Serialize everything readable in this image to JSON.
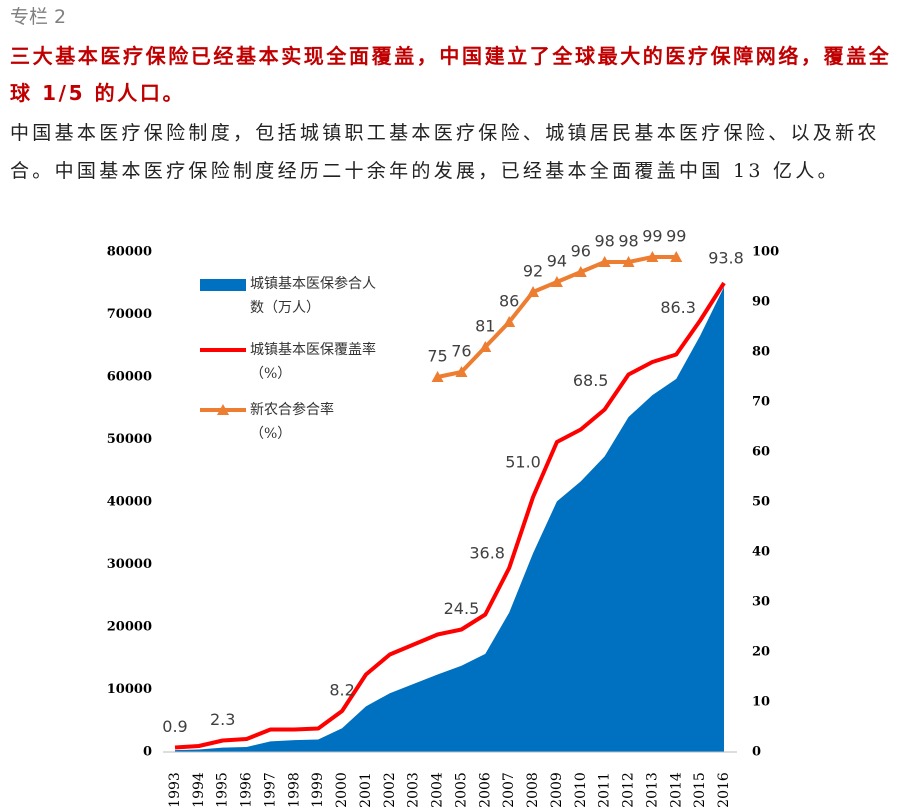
{
  "header": {
    "column": "专栏 2",
    "title": "三大基本医疗保险已经基本实现全面覆盖，中国建立了全球最大的医疗保障网络，覆盖全球 1/5 的人口。",
    "body": "中国基本医疗保险制度，包括城镇职工基本医疗保险、城镇居民基本医疗保险、以及新农合。中国基本医疗保险制度经历二十余年的发展，已经基本全面覆盖中国 13 亿人。"
  },
  "chart_data": {
    "type": "combo",
    "categories": [
      "1993",
      "1994",
      "1995",
      "1996",
      "1997",
      "1998",
      "1999",
      "2000",
      "2001",
      "2002",
      "2003",
      "2004",
      "2005",
      "2006",
      "2007",
      "2008",
      "2009",
      "2010",
      "2011",
      "2012",
      "2013",
      "2014",
      "2015",
      "2016"
    ],
    "series": [
      {
        "name": "城镇基本医保参合人数（万人）",
        "type": "area",
        "color": "#0070c0",
        "axis": "y",
        "values": [
          300,
          400,
          700,
          800,
          1700,
          1900,
          2000,
          3800,
          7300,
          9400,
          10900,
          12400,
          13800,
          15700,
          22300,
          31800,
          40100,
          43300,
          47300,
          53600,
          57100,
          59700,
          66600,
          74400
        ]
      },
      {
        "name": "城镇基本医保覆盖率（%）",
        "type": "line",
        "color": "#ff0000",
        "axis": "y2",
        "values": [
          0.9,
          1.2,
          2.3,
          2.6,
          4.5,
          4.5,
          4.7,
          8.2,
          15.5,
          19.5,
          21.5,
          23.5,
          24.5,
          27.5,
          36.8,
          51.0,
          62,
          64.5,
          68.5,
          75.5,
          78,
          79.5,
          86.3,
          93.8
        ],
        "value_labels": [
          "0.9",
          null,
          "2.3",
          null,
          null,
          null,
          null,
          "8.2",
          null,
          null,
          null,
          null,
          "24.5",
          null,
          "36.8",
          "51.0",
          null,
          null,
          "68.5",
          null,
          null,
          null,
          "86.3",
          "93.8"
        ]
      },
      {
        "name": "新农合参合率（%）",
        "type": "line",
        "marker": "triangle",
        "color": "#ed7d31",
        "axis": "y2",
        "values": [
          null,
          null,
          null,
          null,
          null,
          null,
          null,
          null,
          null,
          null,
          null,
          75,
          76,
          81,
          86,
          92,
          94,
          96,
          98,
          98,
          99,
          99,
          null,
          null
        ],
        "value_labels": [
          null,
          null,
          null,
          null,
          null,
          null,
          null,
          null,
          null,
          null,
          null,
          "75",
          "76",
          "81",
          "86",
          "92",
          "94",
          "96",
          "98",
          "98",
          "99",
          "99",
          null,
          null
        ]
      }
    ],
    "ylim": [
      0,
      80000
    ],
    "yticks": [
      0,
      10000,
      20000,
      30000,
      40000,
      50000,
      60000,
      70000,
      80000
    ],
    "y2lim": [
      0,
      100
    ],
    "y2ticks": [
      0,
      10,
      20,
      30,
      40,
      50,
      60,
      70,
      80,
      90,
      100
    ]
  }
}
